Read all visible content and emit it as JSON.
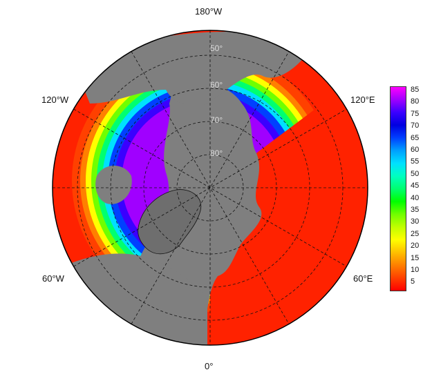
{
  "map": {
    "projection": "north-polar-stereographic",
    "center_lon_bottom": "0°",
    "ocean_color": "#7f7f7f",
    "land_background_color": "#ff2200",
    "longitude_labels": {
      "top": "180°W",
      "bottom": "0°",
      "upper_left": "120°W",
      "upper_right": "120°E",
      "lower_left": "60°W",
      "lower_right": "60°E"
    },
    "latitude_labels": [
      "50°",
      "60°",
      "70°",
      "80°"
    ]
  },
  "colorbar": {
    "ticks": [
      "85",
      "80",
      "75",
      "70",
      "65",
      "60",
      "55",
      "50",
      "45",
      "40",
      "35",
      "30",
      "25",
      "20",
      "15",
      "10",
      "5"
    ],
    "colors": [
      "#ff00ff",
      "#a000ff",
      "#3a00ff",
      "#0000e0",
      "#0040ff",
      "#00a0ff",
      "#00e0ff",
      "#00ffc0",
      "#00ff70",
      "#00ff00",
      "#70ff00",
      "#c0ff00",
      "#ffff00",
      "#ffc000",
      "#ff8000",
      "#ff4000",
      "#ff0000"
    ]
  }
}
